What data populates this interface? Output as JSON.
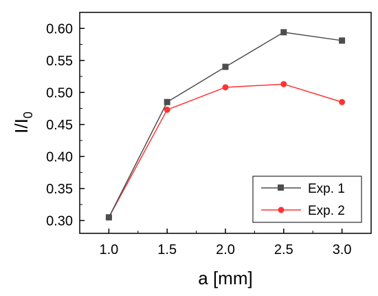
{
  "chart_data": {
    "type": "line",
    "title": "",
    "xlabel": "a [mm]",
    "ylabel_main": "I/I",
    "ylabel_sub": "0",
    "x": [
      1.0,
      1.5,
      2.0,
      2.5,
      3.0
    ],
    "xticks": [
      "1.0",
      "1.5",
      "2.0",
      "2.5",
      "3.0"
    ],
    "yticks": [
      "0.30",
      "0.35",
      "0.40",
      "0.45",
      "0.50",
      "0.55",
      "0.60"
    ],
    "xlim": [
      0.75,
      3.25
    ],
    "ylim": [
      0.28,
      0.625
    ],
    "grid": false,
    "legend_position": "bottom-right",
    "series": [
      {
        "name": "Exp. 1",
        "color": "#4d4d4d",
        "marker": "square",
        "values": [
          0.305,
          0.485,
          0.54,
          0.594,
          0.581
        ]
      },
      {
        "name": "Exp. 2",
        "color": "#ff3333",
        "marker": "circle",
        "values": [
          0.305,
          0.473,
          0.508,
          0.513,
          0.485
        ]
      }
    ]
  }
}
